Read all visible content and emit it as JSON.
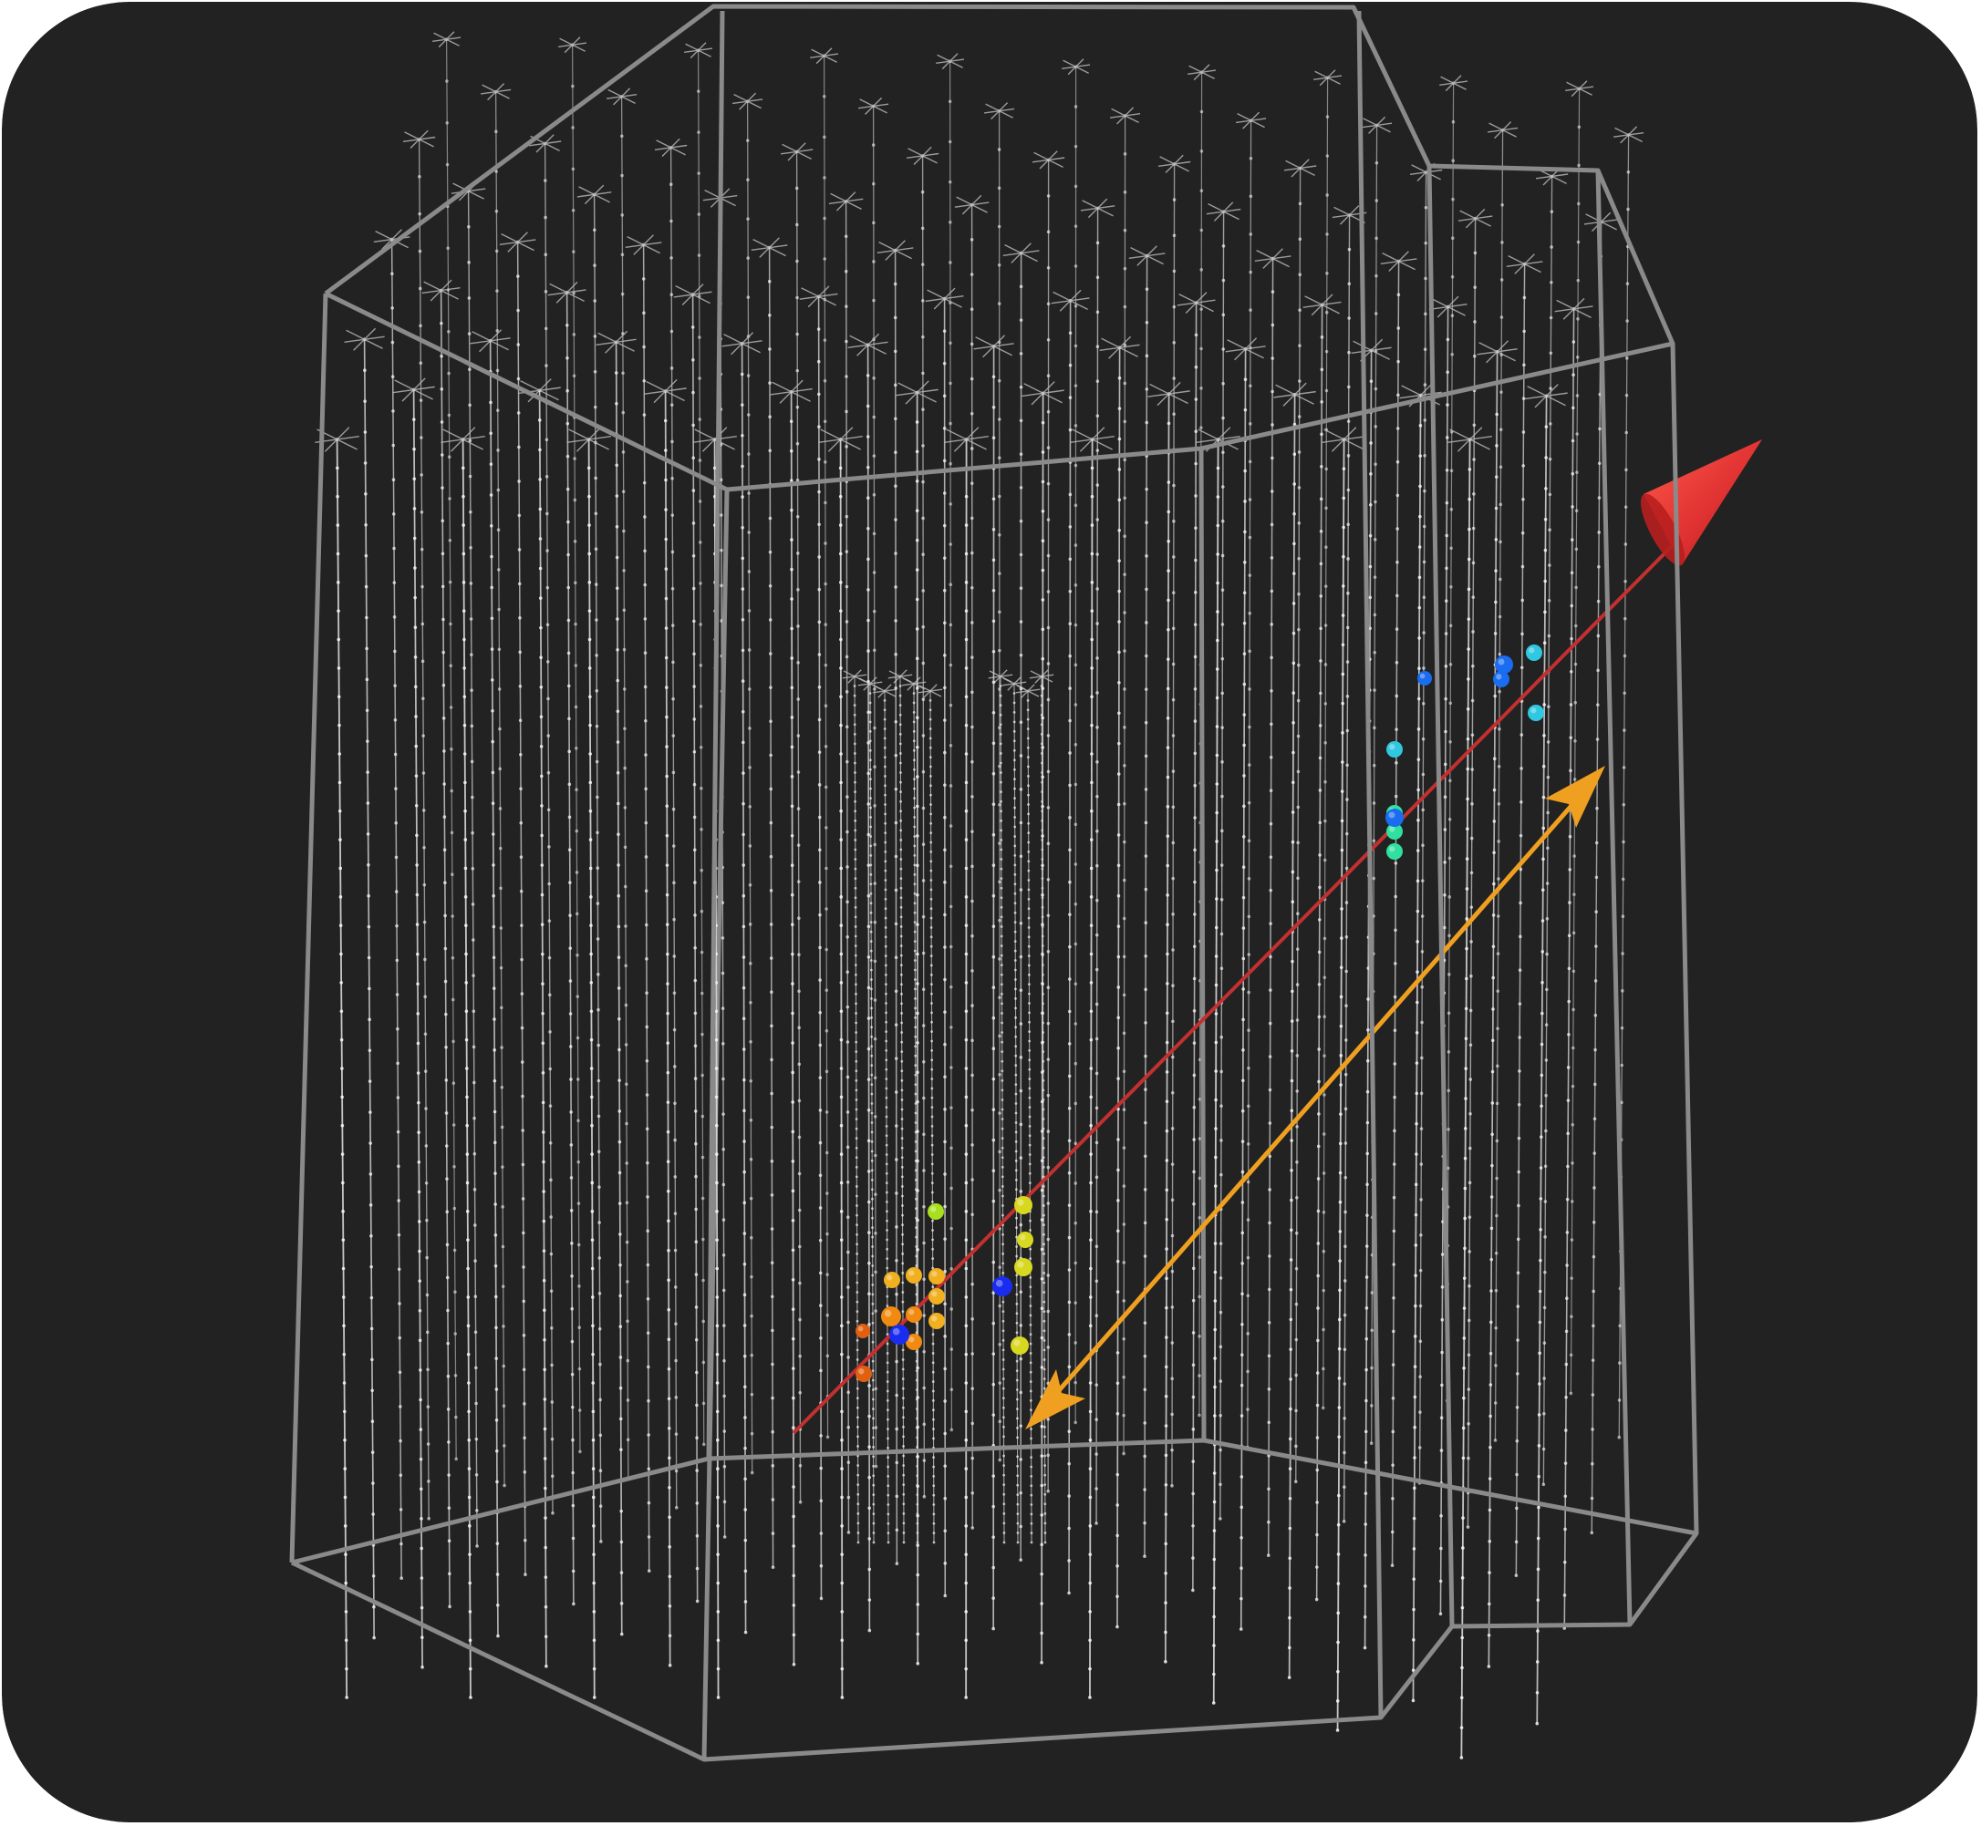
{
  "colors": {
    "background": "#222222",
    "detector_frame": "#8a8a8a",
    "string": "#d8d8d8",
    "track": "#c23030",
    "track_arrowhead": "#e03232",
    "distance_arrow": "#f0a020"
  },
  "legend": [],
  "hits": {
    "early": [
      "#e06010",
      "#f08a10",
      "#f0b020"
    ],
    "mid": [
      "#d8d820",
      "#a8e020",
      "#30e0a0"
    ],
    "late": [
      "#30c8e0",
      "#1a6cf0",
      "#1a2cf0"
    ]
  },
  "icons": {
    "track_head": "cone-arrowhead-icon",
    "distance_marker": "double-headed-arrow-icon",
    "string_top": "surface-station-icon"
  }
}
